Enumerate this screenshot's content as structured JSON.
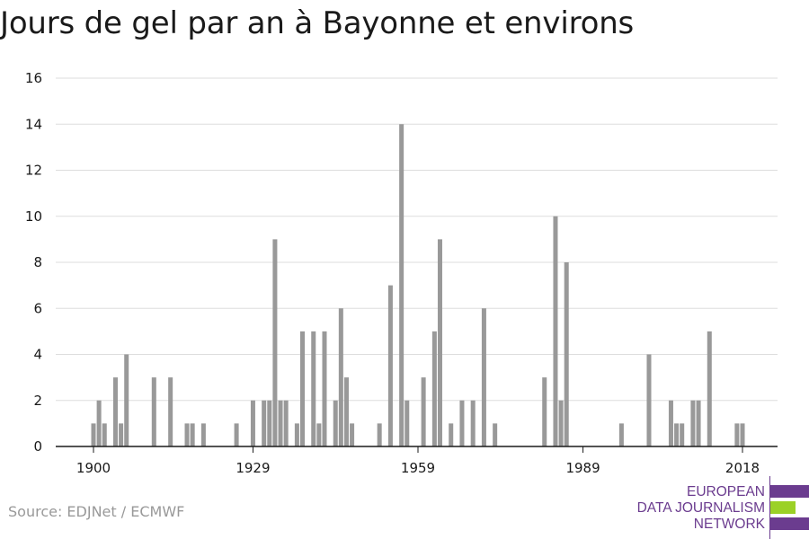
{
  "chart_data": {
    "type": "bar",
    "title": "Jours de gel par an à Bayonne et environs",
    "xlabel": "",
    "ylabel": "",
    "ylim": [
      0,
      16
    ],
    "xlim": [
      1900,
      2018
    ],
    "yticks": [
      0,
      2,
      4,
      6,
      8,
      10,
      12,
      14,
      16
    ],
    "xticks": [
      1900,
      1929,
      1959,
      1989,
      2018
    ],
    "grid": true,
    "legend": "none",
    "bar_color": "#999999",
    "grid_color": "#dddddd",
    "x": [
      1900,
      1901,
      1902,
      1903,
      1904,
      1905,
      1906,
      1907,
      1908,
      1909,
      1910,
      1911,
      1912,
      1913,
      1914,
      1915,
      1916,
      1917,
      1918,
      1919,
      1920,
      1921,
      1922,
      1923,
      1924,
      1925,
      1926,
      1927,
      1928,
      1929,
      1930,
      1931,
      1932,
      1933,
      1934,
      1935,
      1936,
      1937,
      1938,
      1939,
      1940,
      1941,
      1942,
      1943,
      1944,
      1945,
      1946,
      1947,
      1948,
      1949,
      1950,
      1951,
      1952,
      1953,
      1954,
      1955,
      1956,
      1957,
      1958,
      1959,
      1960,
      1961,
      1962,
      1963,
      1964,
      1965,
      1966,
      1967,
      1968,
      1969,
      1970,
      1971,
      1972,
      1973,
      1974,
      1975,
      1976,
      1977,
      1978,
      1979,
      1980,
      1981,
      1982,
      1983,
      1984,
      1985,
      1986,
      1987,
      1988,
      1989,
      1990,
      1991,
      1992,
      1993,
      1994,
      1995,
      1996,
      1997,
      1998,
      1999,
      2000,
      2001,
      2002,
      2003,
      2004,
      2005,
      2006,
      2007,
      2008,
      2009,
      2010,
      2011,
      2012,
      2013,
      2014,
      2015,
      2016,
      2017,
      2018
    ],
    "values": [
      1,
      2,
      1,
      0,
      3,
      1,
      4,
      0,
      0,
      0,
      0,
      3,
      0,
      0,
      3,
      0,
      0,
      1,
      1,
      0,
      1,
      0,
      0,
      0,
      0,
      0,
      1,
      0,
      0,
      2,
      0,
      2,
      2,
      9,
      2,
      2,
      0,
      1,
      5,
      0,
      5,
      1,
      5,
      0,
      2,
      6,
      3,
      1,
      0,
      0,
      0,
      0,
      1,
      0,
      7,
      0,
      14,
      2,
      0,
      0,
      3,
      0,
      5,
      9,
      0,
      1,
      0,
      2,
      0,
      2,
      0,
      6,
      0,
      1,
      0,
      0,
      0,
      0,
      0,
      0,
      0,
      0,
      3,
      0,
      10,
      2,
      8,
      0,
      0,
      0,
      0,
      0,
      0,
      0,
      0,
      0,
      1,
      0,
      0,
      0,
      0,
      4,
      0,
      0,
      0,
      2,
      1,
      1,
      0,
      2,
      2,
      0,
      5,
      0,
      0,
      0,
      0,
      1,
      1
    ]
  },
  "source": "Source: EDJNet / ECMWF",
  "logo": {
    "line1": "EUROPEAN",
    "line2": "DATA JOURNALISM",
    "line3": "NETWORK",
    "purple": "#6b3c8f",
    "green": "#9bd126"
  }
}
